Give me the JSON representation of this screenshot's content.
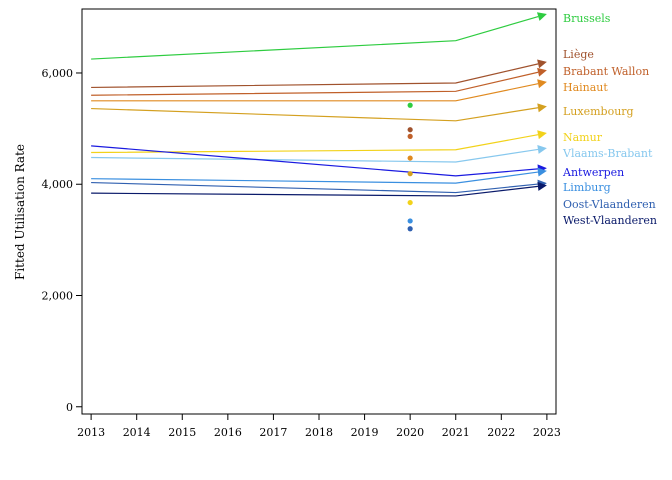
{
  "chart_data": {
    "type": "line",
    "ylabel": "Fitted Utilisation Rate",
    "xlabel": "",
    "x_ticks": [
      "2013",
      "2014",
      "2015",
      "2016",
      "2017",
      "2018",
      "2019",
      "2020",
      "2021",
      "2022",
      "2023"
    ],
    "y_ticks": [
      {
        "value": 0,
        "label": "0"
      },
      {
        "value": 2000,
        "label": "2,000"
      },
      {
        "value": 4000,
        "label": "4,000"
      },
      {
        "value": 6000,
        "label": "6,000"
      }
    ],
    "xlim": [
      2012.8,
      2023.2
    ],
    "ylim": [
      -130,
      7150
    ],
    "grid": false,
    "legend": "right-side direct labels",
    "x": [
      2013,
      2021,
      2023
    ],
    "series": [
      {
        "name": "Brussels",
        "color": "#2ecc40",
        "values": [
          6250,
          6580,
          7060
        ],
        "point2020": 5420
      },
      {
        "name": "Liège",
        "color": "#a0522d",
        "values": [
          5740,
          5820,
          6200
        ],
        "point2020": 4980
      },
      {
        "name": "Brabant Wallon",
        "color": "#c0602a",
        "values": [
          5600,
          5670,
          6050
        ],
        "point2020": 4860
      },
      {
        "name": "Hainaut",
        "color": "#e08a20",
        "values": [
          5500,
          5500,
          5840
        ],
        "point2020": 4470
      },
      {
        "name": "Luxembourg",
        "color": "#d4a020",
        "values": [
          5360,
          5140,
          5400
        ],
        "point2020": 4190
      },
      {
        "name": "Namur",
        "color": "#f2d21a",
        "values": [
          4570,
          4620,
          4920
        ],
        "point2020": 3670
      },
      {
        "name": "Vlaams-Brabant",
        "color": "#87c8ee",
        "values": [
          4480,
          4400,
          4650
        ],
        "point2020": null
      },
      {
        "name": "Antwerpen",
        "color": "#1a1ae0",
        "values": [
          4690,
          4150,
          4290
        ],
        "point2020": null
      },
      {
        "name": "Limburg",
        "color": "#3a8fe0",
        "values": [
          4100,
          4020,
          4240
        ],
        "point2020": 3340
      },
      {
        "name": "Oost-Vlaanderen",
        "color": "#3060b0",
        "values": [
          4030,
          3850,
          4020
        ],
        "point2020": 3200
      },
      {
        "name": "West-Vlaanderen",
        "color": "#0a1a6a",
        "values": [
          3840,
          3790,
          3980
        ],
        "point2020": null
      }
    ]
  }
}
